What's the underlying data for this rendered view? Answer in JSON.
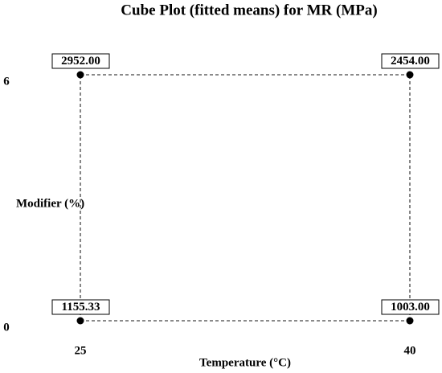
{
  "chart_data": {
    "type": "cube",
    "title": "Cube Plot (fitted means) for MR (MPa)",
    "x_label": "Temperature (°C)",
    "y_label": "Modifier (%)",
    "xlim": [
      25,
      40
    ],
    "ylim": [
      0,
      6
    ],
    "xticks": [
      25,
      40
    ],
    "yticks": [
      0,
      6
    ],
    "x": [
      25,
      25,
      40,
      40
    ],
    "y": [
      0,
      6,
      0,
      6
    ],
    "values": [
      1155.33,
      2952,
      1003,
      2454
    ],
    "value_labels": [
      "1155.33",
      "2952.00",
      "1003.00",
      "2454.00"
    ],
    "color": "#000000"
  }
}
